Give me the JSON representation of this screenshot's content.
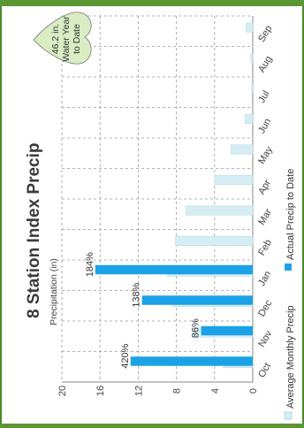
{
  "chart_data": {
    "type": "bar",
    "orientation": "horizontal",
    "rotated_ccw_90": true,
    "title": "8 Station Index Precip",
    "ylabel": "Precipitation (in)",
    "xlabel": "",
    "xlim": [
      0,
      20
    ],
    "ticks": [
      0,
      4,
      8,
      12,
      16,
      20
    ],
    "grid": true,
    "legend_position": "bottom",
    "categories": [
      "Oct",
      "Nov",
      "Dec",
      "Jan",
      "Feb",
      "Mar",
      "Apr",
      "May",
      "Jun",
      "Jul",
      "Aug",
      "Sep"
    ],
    "series": [
      {
        "name": "Average Monthly Precip",
        "color": "#d6edf4",
        "values": [
          3.1,
          6.2,
          8.4,
          9.0,
          8.1,
          7.0,
          4.0,
          2.3,
          0.8,
          0.1,
          0.2,
          0.7
        ]
      },
      {
        "name": "Actual Precip to Date",
        "color": "#1ba2e6",
        "values": [
          12.8,
          5.4,
          11.6,
          16.5,
          null,
          null,
          null,
          null,
          null,
          null,
          null,
          null
        ]
      }
    ],
    "annotations": [
      "420%",
      "86%",
      "138%",
      "184%",
      null,
      null,
      null,
      null,
      null,
      null,
      null,
      null
    ],
    "callout": [
      "46.2 in.",
      "Water Year",
      "to Date"
    ],
    "callout_color": "#d9ecc3"
  }
}
